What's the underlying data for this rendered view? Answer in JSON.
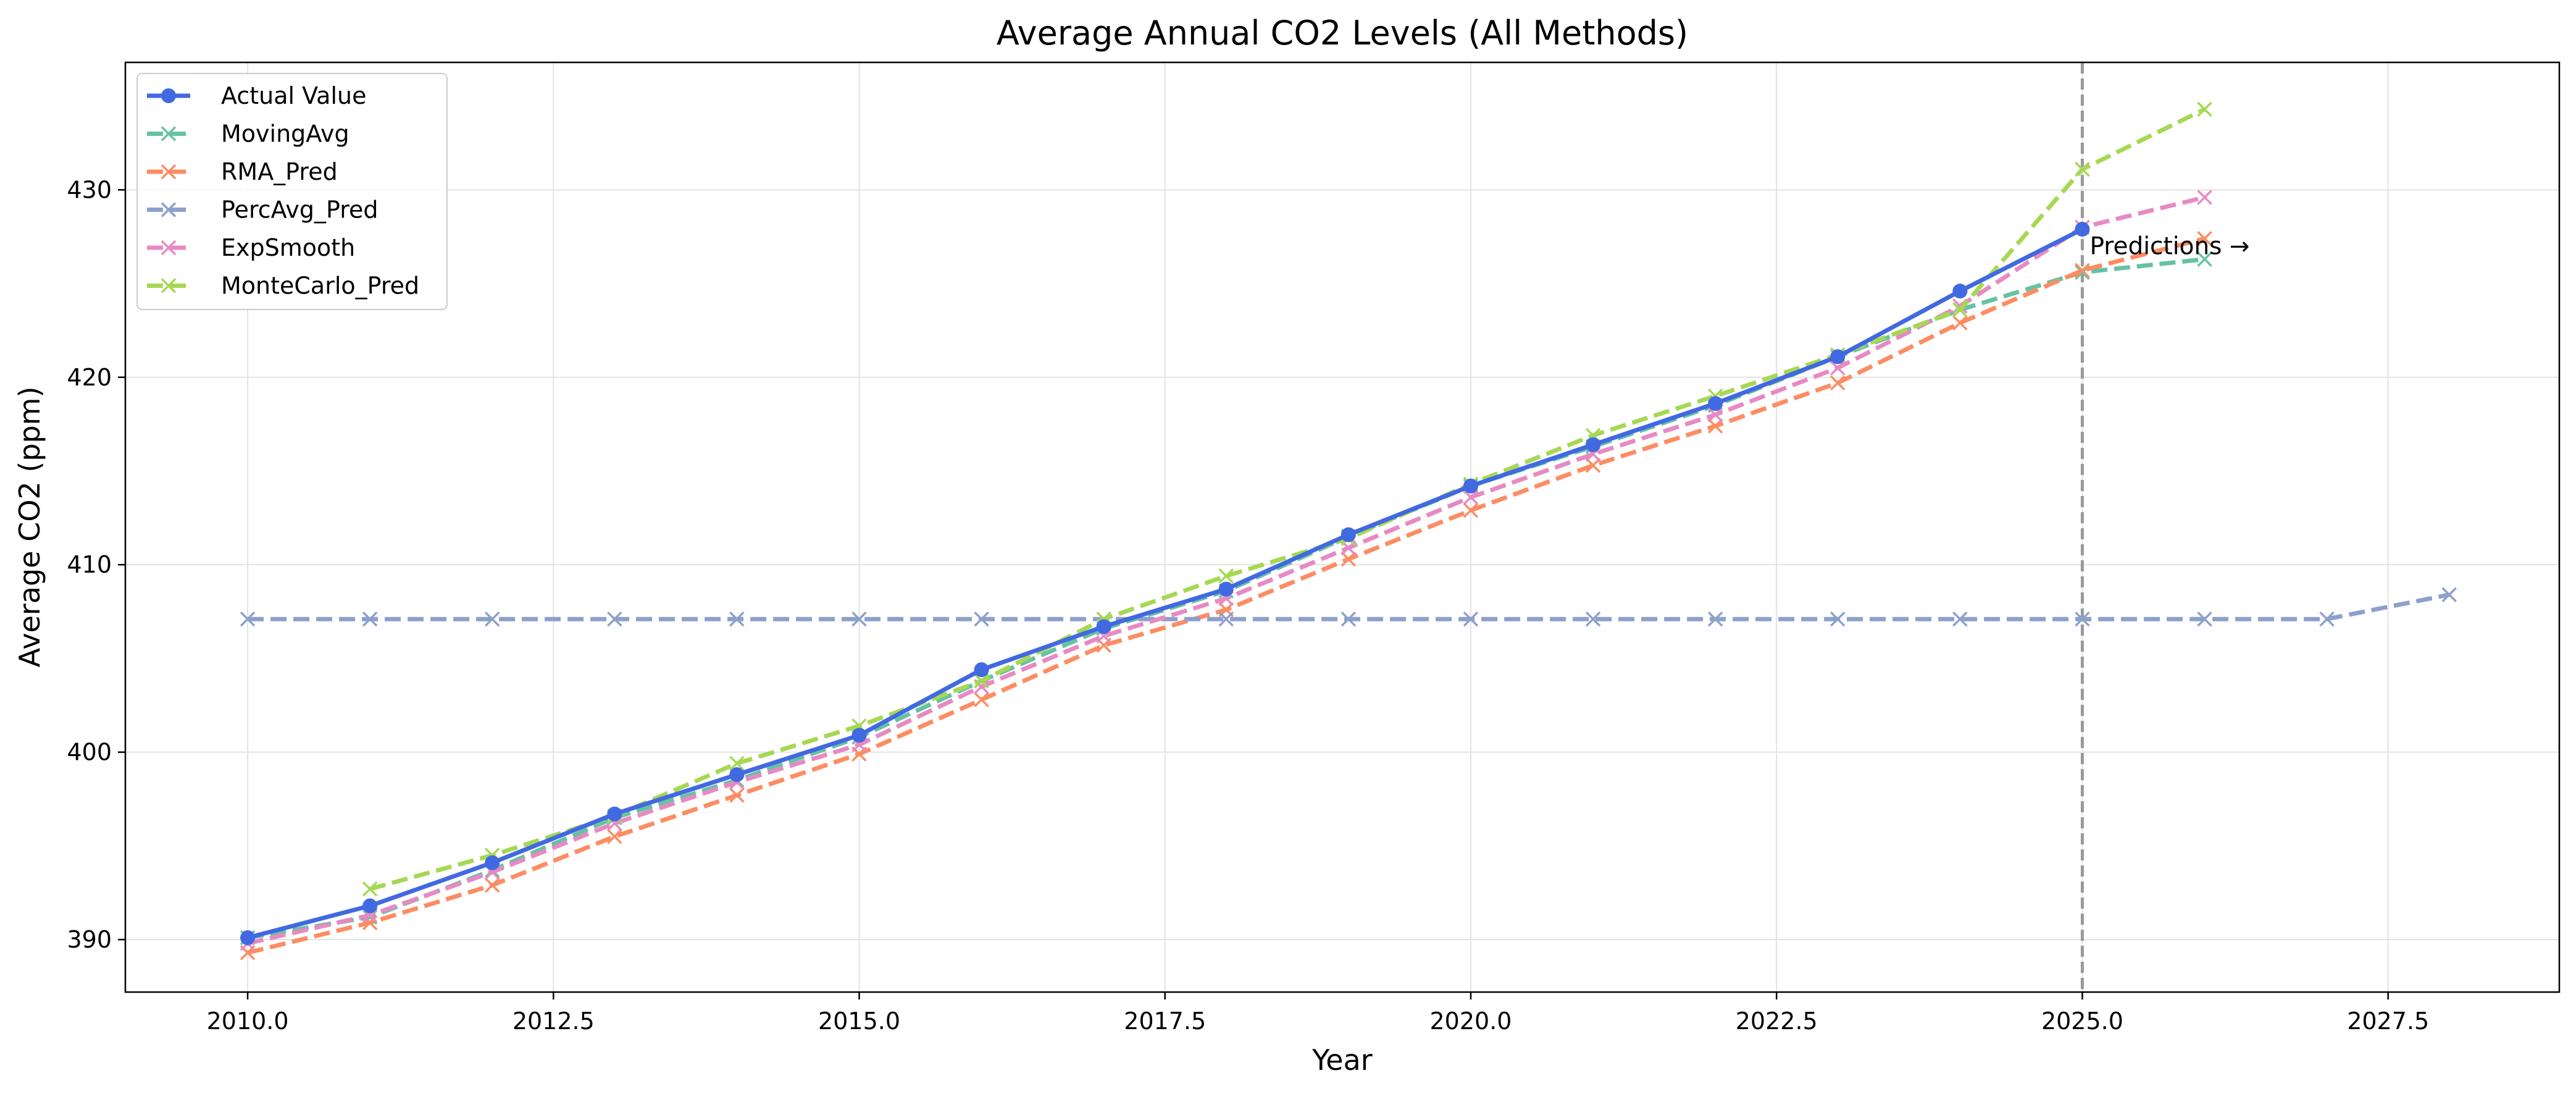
{
  "chart_data": {
    "type": "line",
    "title": "Average Annual CO2 Levels (All Methods)",
    "xlabel": "Year",
    "ylabel": "Average CO2 (ppm)",
    "xlim": [
      2009.0,
      2028.9
    ],
    "ylim": [
      387.2,
      436.8
    ],
    "xticks": [
      "2010.0",
      "2012.5",
      "2015.0",
      "2017.5",
      "2020.0",
      "2022.5",
      "2025.0",
      "2027.5"
    ],
    "yticks": [
      "390",
      "400",
      "410",
      "420",
      "430"
    ],
    "grid": true,
    "legend_position": "top-left",
    "annotation": {
      "text": "Predictions →",
      "x": 2025.0,
      "y": 427.0
    },
    "prediction_line_x": 2025.0,
    "series": [
      {
        "name": "Actual Value",
        "color": "#4169e1",
        "style": "solid",
        "marker": "circle",
        "x": [
          2010,
          2011,
          2012,
          2013,
          2014,
          2015,
          2016,
          2017,
          2018,
          2019,
          2020,
          2021,
          2022,
          2023,
          2024,
          2025
        ],
        "y": [
          390.1,
          391.8,
          394.1,
          396.7,
          398.8,
          400.9,
          404.4,
          406.7,
          408.7,
          411.6,
          414.2,
          416.4,
          418.6,
          421.1,
          424.6,
          427.9
        ]
      },
      {
        "name": "MovingAvg",
        "color": "#66c2a5",
        "style": "dashed",
        "marker": "x",
        "x": [
          2010,
          2011,
          2012,
          2013,
          2014,
          2015,
          2016,
          2017,
          2018,
          2019,
          2020,
          2021,
          2022,
          2023,
          2024,
          2025,
          2026
        ],
        "y": [
          390.1,
          391.2,
          393.7,
          396.5,
          398.5,
          400.8,
          403.8,
          406.6,
          408.6,
          411.5,
          414.2,
          416.3,
          418.5,
          421.1,
          423.6,
          425.6,
          426.3
        ]
      },
      {
        "name": "RMA_Pred",
        "color": "#fc8d62",
        "style": "dashed",
        "marker": "x",
        "x": [
          2010,
          2011,
          2012,
          2013,
          2014,
          2015,
          2016,
          2017,
          2018,
          2019,
          2020,
          2021,
          2022,
          2023,
          2024,
          2025,
          2026
        ],
        "y": [
          389.3,
          390.9,
          392.9,
          395.5,
          397.7,
          399.9,
          402.8,
          405.7,
          407.6,
          410.3,
          412.9,
          415.3,
          417.4,
          419.7,
          422.9,
          425.7,
          427.4
        ]
      },
      {
        "name": "PercAvg_Pred",
        "color": "#8da0cb",
        "style": "dashed",
        "marker": "x",
        "x": [
          2010,
          2011,
          2012,
          2013,
          2014,
          2015,
          2016,
          2017,
          2018,
          2019,
          2020,
          2021,
          2022,
          2023,
          2024,
          2025,
          2026,
          2027,
          2028
        ],
        "y": [
          407.1,
          407.1,
          407.1,
          407.1,
          407.1,
          407.1,
          407.1,
          407.1,
          407.1,
          407.1,
          407.1,
          407.1,
          407.1,
          407.1,
          407.1,
          407.1,
          407.1,
          407.1,
          408.4
        ]
      },
      {
        "name": "ExpSmooth",
        "color": "#e78ac3",
        "style": "dashed",
        "marker": "x",
        "x": [
          2010,
          2011,
          2012,
          2013,
          2014,
          2015,
          2016,
          2017,
          2018,
          2019,
          2020,
          2021,
          2022,
          2023,
          2024,
          2025,
          2026
        ],
        "y": [
          389.8,
          391.3,
          393.6,
          396.2,
          398.4,
          400.4,
          403.5,
          406.2,
          408.2,
          410.9,
          413.6,
          415.9,
          418.0,
          420.5,
          423.8,
          428.0,
          429.6
        ]
      },
      {
        "name": "MonteCarlo_Pred",
        "color": "#a6d854",
        "style": "dashed",
        "marker": "x",
        "x": [
          2011,
          2012,
          2013,
          2014,
          2015,
          2016,
          2017,
          2018,
          2019,
          2020,
          2021,
          2022,
          2023,
          2024,
          2025,
          2026
        ],
        "y": [
          392.7,
          394.5,
          396.6,
          399.4,
          401.4,
          403.8,
          407.1,
          409.4,
          411.4,
          414.3,
          416.9,
          419.0,
          421.2,
          423.6,
          431.1,
          434.3
        ]
      }
    ]
  }
}
